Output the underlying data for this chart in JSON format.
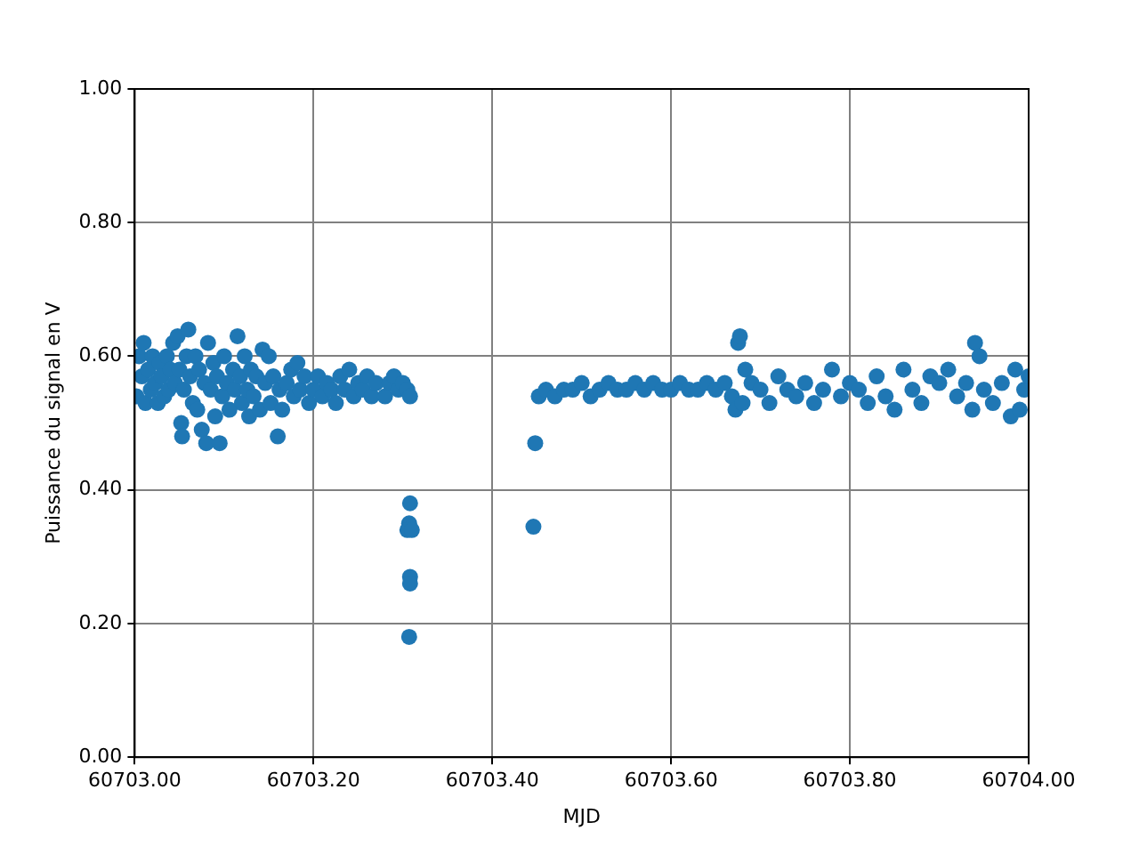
{
  "chart_data": {
    "type": "scatter",
    "xlabel": "MJD",
    "ylabel": "Puissance du signal en V",
    "xlim": [
      60703.0,
      60704.0
    ],
    "xticks": [
      {
        "value": 60703.0,
        "label": "60703.00"
      },
      {
        "value": 60703.2,
        "label": "60703.20"
      },
      {
        "value": 60703.4,
        "label": "60703.40"
      },
      {
        "value": 60703.6,
        "label": "60703.60"
      },
      {
        "value": 60703.8,
        "label": "60703.80"
      },
      {
        "value": 60704.0,
        "label": "60704.00"
      }
    ],
    "ylim": [
      0,
      1
    ],
    "yticks": [
      {
        "value": 0,
        "label": "0.00"
      },
      {
        "value": 0.2,
        "label": "0.20"
      },
      {
        "value": 0.4,
        "label": "0.40"
      },
      {
        "value": 0.6,
        "label": "0.60"
      },
      {
        "value": 0.8,
        "label": "0.80"
      },
      {
        "value": 1,
        "label": "1.00"
      }
    ],
    "grid": true,
    "legend": false,
    "marker": "circle",
    "series": [
      {
        "color": "#1f77b4",
        "x": [
          60703.002,
          60703.005,
          60703.008,
          60703.01,
          60703.012,
          60703.015,
          60703.018,
          60703.02,
          60703.023,
          60703.026,
          60703.028,
          60703.03,
          60703.033,
          60703.036,
          60703.038,
          60703.04,
          60703.043,
          60703.045,
          60703.048,
          60703.05,
          60703.052,
          60703.053,
          60703.055,
          60703.058,
          60703.06,
          60703.062,
          60703.065,
          60703.068,
          60703.07,
          60703.072,
          60703.075,
          60703.078,
          60703.08,
          60703.082,
          60703.085,
          60703.088,
          60703.09,
          60703.092,
          60703.095,
          60703.098,
          60703.1,
          60703.103,
          60703.106,
          60703.11,
          60703.112,
          60703.115,
          60703.118,
          60703.12,
          60703.123,
          60703.126,
          60703.128,
          60703.13,
          60703.133,
          60703.136,
          60703.14,
          60703.143,
          60703.146,
          60703.15,
          60703.152,
          60703.155,
          60703.16,
          60703.162,
          60703.165,
          60703.17,
          60703.175,
          60703.178,
          60703.182,
          60703.185,
          60703.19,
          60703.195,
          60703.2,
          60703.205,
          60703.21,
          60703.215,
          60703.22,
          60703.225,
          60703.23,
          60703.235,
          60703.24,
          60703.245,
          60703.25,
          60703.255,
          60703.26,
          60703.265,
          60703.27,
          60703.28,
          60703.285,
          60703.29,
          60703.295,
          60703.3,
          60703.305,
          60703.308,
          60703.308,
          60703.307,
          60703.305,
          60703.31,
          60703.308,
          60703.308,
          60703.307,
          60703.446,
          60703.448,
          60703.452,
          60703.46,
          60703.47,
          60703.48,
          60703.49,
          60703.5,
          60703.51,
          60703.52,
          60703.53,
          60703.54,
          60703.55,
          60703.56,
          60703.57,
          60703.58,
          60703.59,
          60703.6,
          60703.61,
          60703.62,
          60703.63,
          60703.64,
          60703.65,
          60703.66,
          60703.668,
          60703.672,
          60703.675,
          60703.677,
          60703.68,
          60703.683,
          60703.69,
          60703.7,
          60703.71,
          60703.72,
          60703.73,
          60703.74,
          60703.75,
          60703.76,
          60703.77,
          60703.78,
          60703.79,
          60703.8,
          60703.81,
          60703.82,
          60703.83,
          60703.84,
          60703.85,
          60703.86,
          60703.87,
          60703.88,
          60703.89,
          60703.9,
          60703.91,
          60703.92,
          60703.93,
          60703.937,
          60703.94,
          60703.945,
          60703.95,
          60703.96,
          60703.97,
          60703.98,
          60703.985,
          60703.99,
          60703.995,
          60704.0
        ],
        "values": [
          0.54,
          0.6,
          0.57,
          0.62,
          0.53,
          0.58,
          0.55,
          0.6,
          0.56,
          0.53,
          0.59,
          0.57,
          0.54,
          0.6,
          0.55,
          0.58,
          0.62,
          0.56,
          0.63,
          0.58,
          0.5,
          0.48,
          0.55,
          0.6,
          0.64,
          0.57,
          0.53,
          0.6,
          0.52,
          0.58,
          0.49,
          0.56,
          0.47,
          0.62,
          0.55,
          0.59,
          0.51,
          0.57,
          0.47,
          0.54,
          0.6,
          0.56,
          0.52,
          0.58,
          0.55,
          0.63,
          0.57,
          0.53,
          0.6,
          0.55,
          0.51,
          0.58,
          0.54,
          0.57,
          0.52,
          0.61,
          0.56,
          0.6,
          0.53,
          0.57,
          0.48,
          0.55,
          0.52,
          0.56,
          0.58,
          0.54,
          0.59,
          0.55,
          0.57,
          0.53,
          0.55,
          0.57,
          0.54,
          0.56,
          0.55,
          0.53,
          0.57,
          0.55,
          0.58,
          0.54,
          0.56,
          0.55,
          0.57,
          0.54,
          0.56,
          0.54,
          0.56,
          0.57,
          0.55,
          0.56,
          0.55,
          0.54,
          0.38,
          0.35,
          0.34,
          0.34,
          0.27,
          0.26,
          0.18,
          0.345,
          0.47,
          0.54,
          0.55,
          0.54,
          0.55,
          0.55,
          0.56,
          0.54,
          0.55,
          0.56,
          0.55,
          0.55,
          0.56,
          0.55,
          0.56,
          0.55,
          0.55,
          0.56,
          0.55,
          0.55,
          0.56,
          0.55,
          0.56,
          0.54,
          0.52,
          0.62,
          0.63,
          0.53,
          0.58,
          0.56,
          0.55,
          0.53,
          0.57,
          0.55,
          0.54,
          0.56,
          0.53,
          0.55,
          0.58,
          0.54,
          0.56,
          0.55,
          0.53,
          0.57,
          0.54,
          0.52,
          0.58,
          0.55,
          0.53,
          0.57,
          0.56,
          0.58,
          0.54,
          0.56,
          0.52,
          0.62,
          0.6,
          0.55,
          0.53,
          0.56,
          0.51,
          0.58,
          0.52,
          0.55,
          0.57
        ]
      }
    ]
  }
}
